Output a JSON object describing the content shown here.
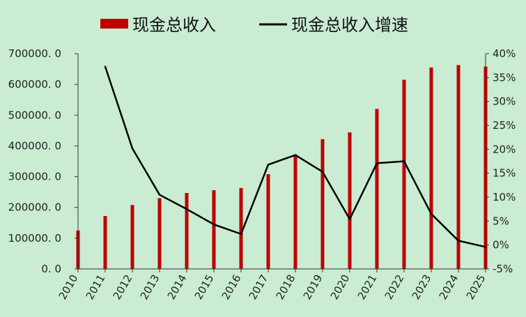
{
  "chart_data": {
    "type": "bar",
    "categories": [
      "2010",
      "2011",
      "2012",
      "2013",
      "2014",
      "2015",
      "2016",
      "2017",
      "2018",
      "2019",
      "2020",
      "2021",
      "2022",
      "2023",
      "2024",
      "2025"
    ],
    "series": [
      {
        "name": "现金总收入",
        "type": "bar",
        "axis": "left",
        "color": "#c00000",
        "values": [
          125000,
          172000,
          208000,
          230000,
          247000,
          256000,
          263000,
          308000,
          372000,
          422000,
          444000,
          520000,
          615000,
          655000,
          663000,
          658000
        ]
      },
      {
        "name": "现金总收入增速",
        "type": "line",
        "axis": "right",
        "color": "#000000",
        "values": [
          null,
          0.373,
          0.202,
          0.105,
          0.075,
          0.043,
          0.023,
          0.168,
          0.188,
          0.153,
          0.054,
          0.171,
          0.175,
          0.065,
          0.009,
          -0.004
        ]
      }
    ],
    "y_left": {
      "ylim": [
        0,
        700000
      ],
      "ticks": [
        0,
        100000,
        200000,
        300000,
        400000,
        500000,
        600000,
        700000
      ],
      "tick_labels": [
        "0. 0",
        "100000. 0",
        "200000. 0",
        "300000. 0",
        "400000. 0",
        "500000. 0",
        "600000. 0",
        "700000. 0"
      ]
    },
    "y_right": {
      "ylim": [
        -0.05,
        0.4
      ],
      "ticks": [
        -0.05,
        0,
        0.05,
        0.1,
        0.15,
        0.2,
        0.25,
        0.3,
        0.35,
        0.4
      ],
      "tick_labels": [
        "-5%",
        "0%",
        "5%",
        "10%",
        "15%",
        "20%",
        "25%",
        "30%",
        "35%",
        "40%"
      ]
    },
    "grid": false,
    "legend": "top",
    "background": "#c9ecd2"
  }
}
